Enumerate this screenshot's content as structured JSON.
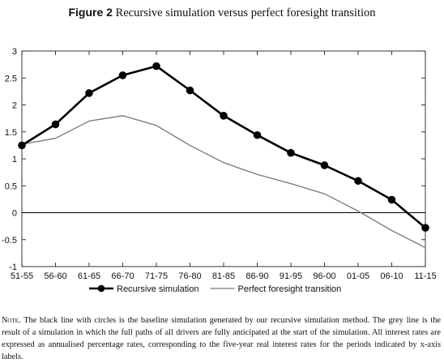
{
  "figure": {
    "label": "Figure 2",
    "title": "Recursive simulation versus perfect foresight transition"
  },
  "chart_data": {
    "type": "line",
    "title": "",
    "xlabel": "",
    "ylabel": "",
    "categories": [
      "51-55",
      "56-60",
      "61-65",
      "66-70",
      "71-75",
      "76-80",
      "81-85",
      "86-90",
      "91-95",
      "96-00",
      "01-05",
      "06-10",
      "11-15"
    ],
    "ylim": [
      -1,
      3
    ],
    "yticks": [
      "3",
      "2.5",
      "2",
      "1.5",
      "1",
      "0.5",
      "0",
      "-0.5",
      "-1"
    ],
    "ytick_values": [
      3,
      2.5,
      2,
      1.5,
      1,
      0.5,
      0,
      -0.5,
      -1
    ],
    "zero_line": true,
    "grid": false,
    "legend_position": "bottom",
    "series": [
      {
        "name": "Recursive simulation",
        "color": "#000000",
        "marker": "circle",
        "values": [
          1.25,
          1.64,
          2.22,
          2.55,
          2.72,
          2.27,
          1.8,
          1.44,
          1.11,
          0.88,
          0.59,
          0.24,
          -0.28
        ]
      },
      {
        "name": "Perfect foresight transition",
        "color": "#777777",
        "marker": "none",
        "values": [
          1.27,
          1.38,
          1.7,
          1.8,
          1.62,
          1.25,
          0.93,
          0.71,
          0.54,
          0.35,
          0.03,
          -0.33,
          -0.65
        ]
      }
    ]
  },
  "note": {
    "label": "Note.",
    "text": "The black line with circles is the baseline simulation generated by our recursive simulation method. The grey line is the result of a simulation in which the full paths of all drivers are fully anticipated at the start of the simulation. All interest rates are expressed as annualised percentage rates, corresponding to the five-year real interest rates for the periods indicated by x-axis labels."
  }
}
